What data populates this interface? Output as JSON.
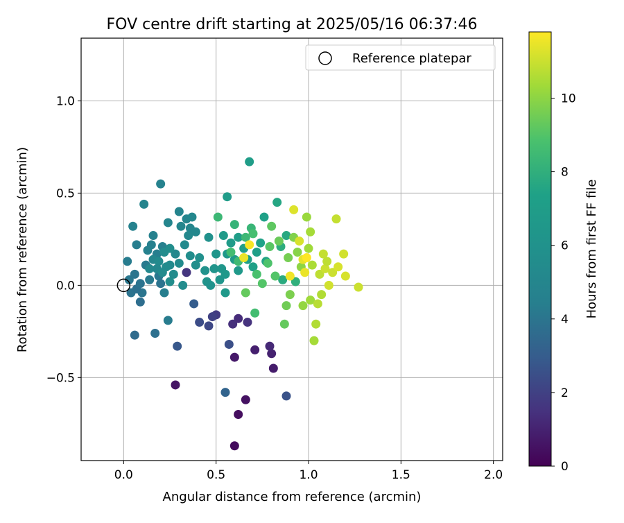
{
  "chart_data": {
    "type": "scatter",
    "title": "FOV centre drift starting at 2025/05/16 06:37:46",
    "xlabel": "Angular distance from reference (arcmin)",
    "ylabel": "Rotation from reference (arcmin)",
    "xlim": [
      -0.23,
      2.05
    ],
    "ylim": [
      -0.95,
      1.34
    ],
    "xticks": [
      0.0,
      0.5,
      1.0,
      1.5,
      2.0
    ],
    "xtick_labels": [
      "0.0",
      "0.5",
      "1.0",
      "1.5",
      "2.0"
    ],
    "yticks": [
      -0.5,
      0.0,
      0.5,
      1.0
    ],
    "ytick_labels": [
      "−0.5",
      "0.0",
      "0.5",
      "1.0"
    ],
    "grid": true,
    "legend": {
      "position": "upper right",
      "label": "Reference platepar"
    },
    "reference_point": {
      "x": 0.0,
      "y": 0.0
    },
    "colorbar": {
      "label": "Hours from first FF file",
      "min": 0,
      "max": 11.8,
      "ticks": [
        0,
        2,
        4,
        6,
        8,
        10
      ],
      "tick_labels": [
        "0",
        "2",
        "4",
        "6",
        "8",
        "10"
      ],
      "colormap": "viridis"
    },
    "points": [
      {
        "x": 0.6,
        "y": -0.87,
        "h": 0.3
      },
      {
        "x": 0.62,
        "y": -0.7,
        "h": 0.4
      },
      {
        "x": 0.66,
        "y": -0.62,
        "h": 0.5
      },
      {
        "x": 0.28,
        "y": -0.54,
        "h": 0.6
      },
      {
        "x": 0.6,
        "y": -0.39,
        "h": 0.7
      },
      {
        "x": 0.81,
        "y": -0.45,
        "h": 0.8
      },
      {
        "x": 0.71,
        "y": -0.35,
        "h": 0.9
      },
      {
        "x": 0.8,
        "y": -0.37,
        "h": 1.0
      },
      {
        "x": 0.79,
        "y": -0.33,
        "h": 1.2
      },
      {
        "x": 0.62,
        "y": -0.18,
        "h": 1.3
      },
      {
        "x": 0.59,
        "y": -0.21,
        "h": 1.4
      },
      {
        "x": 0.67,
        "y": -0.2,
        "h": 1.5
      },
      {
        "x": 0.34,
        "y": 0.07,
        "h": 1.6
      },
      {
        "x": 0.5,
        "y": -0.16,
        "h": 1.8
      },
      {
        "x": 0.48,
        "y": -0.17,
        "h": 2.0
      },
      {
        "x": 0.46,
        "y": -0.22,
        "h": 2.2
      },
      {
        "x": 0.41,
        "y": -0.2,
        "h": 2.4
      },
      {
        "x": 0.57,
        "y": -0.32,
        "h": 2.5
      },
      {
        "x": 0.88,
        "y": -0.6,
        "h": 2.6
      },
      {
        "x": 0.29,
        "y": -0.33,
        "h": 2.8
      },
      {
        "x": 0.38,
        "y": -0.1,
        "h": 3.0
      },
      {
        "x": 0.55,
        "y": -0.58,
        "h": 3.3
      },
      {
        "x": 0.06,
        "y": -0.27,
        "h": 3.6
      },
      {
        "x": 0.17,
        "y": -0.26,
        "h": 3.8
      },
      {
        "x": 0.09,
        "y": -0.09,
        "h": 3.7
      },
      {
        "x": 0.04,
        "y": -0.04,
        "h": 3.9
      },
      {
        "x": 0.1,
        "y": -0.04,
        "h": 4.0
      },
      {
        "x": 0.07,
        "y": -0.02,
        "h": 3.8
      },
      {
        "x": 0.03,
        "y": 0.03,
        "h": 4.1
      },
      {
        "x": 0.06,
        "y": 0.06,
        "h": 4.0
      },
      {
        "x": 0.09,
        "y": 0.01,
        "h": 3.9
      },
      {
        "x": 0.14,
        "y": 0.03,
        "h": 4.2
      },
      {
        "x": 0.19,
        "y": 0.05,
        "h": 4.1
      },
      {
        "x": 0.2,
        "y": 0.01,
        "h": 3.9
      },
      {
        "x": 0.24,
        "y": -0.19,
        "h": 4.3
      },
      {
        "x": 0.22,
        "y": -0.04,
        "h": 4.4
      },
      {
        "x": 0.02,
        "y": 0.13,
        "h": 4.3
      },
      {
        "x": 0.12,
        "y": 0.11,
        "h": 4.2
      },
      {
        "x": 0.07,
        "y": 0.22,
        "h": 4.4
      },
      {
        "x": 0.15,
        "y": 0.22,
        "h": 4.5
      },
      {
        "x": 0.13,
        "y": 0.19,
        "h": 4.6
      },
      {
        "x": 0.18,
        "y": 0.17,
        "h": 4.4
      },
      {
        "x": 0.21,
        "y": 0.21,
        "h": 4.5
      },
      {
        "x": 0.16,
        "y": 0.27,
        "h": 4.6
      },
      {
        "x": 0.2,
        "y": 0.55,
        "h": 4.7
      },
      {
        "x": 0.11,
        "y": 0.44,
        "h": 4.8
      },
      {
        "x": 0.05,
        "y": 0.32,
        "h": 4.7
      },
      {
        "x": 0.24,
        "y": 0.34,
        "h": 4.9
      },
      {
        "x": 0.3,
        "y": 0.4,
        "h": 4.8
      },
      {
        "x": 0.31,
        "y": 0.32,
        "h": 5.0
      },
      {
        "x": 0.34,
        "y": 0.36,
        "h": 4.9
      },
      {
        "x": 0.37,
        "y": 0.37,
        "h": 5.1
      },
      {
        "x": 0.36,
        "y": 0.31,
        "h": 5.0
      },
      {
        "x": 0.35,
        "y": 0.27,
        "h": 5.2
      },
      {
        "x": 0.39,
        "y": 0.29,
        "h": 5.1
      },
      {
        "x": 0.33,
        "y": 0.22,
        "h": 5.3
      },
      {
        "x": 0.28,
        "y": 0.17,
        "h": 5.2
      },
      {
        "x": 0.3,
        "y": 0.12,
        "h": 5.4
      },
      {
        "x": 0.25,
        "y": 0.11,
        "h": 5.3
      },
      {
        "x": 0.27,
        "y": 0.06,
        "h": 5.5
      },
      {
        "x": 0.23,
        "y": 0.1,
        "h": 5.4
      },
      {
        "x": 0.14,
        "y": 0.09,
        "h": 5.2
      },
      {
        "x": 0.16,
        "y": 0.14,
        "h": 5.0
      },
      {
        "x": 0.19,
        "y": 0.13,
        "h": 5.3
      },
      {
        "x": 0.22,
        "y": 0.18,
        "h": 5.5
      },
      {
        "x": 0.25,
        "y": 0.2,
        "h": 5.6
      },
      {
        "x": 0.18,
        "y": 0.09,
        "h": 5.1
      },
      {
        "x": 0.21,
        "y": 0.07,
        "h": 5.4
      },
      {
        "x": 0.25,
        "y": 0.02,
        "h": 5.6
      },
      {
        "x": 0.32,
        "y": 0.0,
        "h": 5.5
      },
      {
        "x": 0.39,
        "y": 0.11,
        "h": 5.7
      },
      {
        "x": 0.41,
        "y": 0.15,
        "h": 5.8
      },
      {
        "x": 0.36,
        "y": 0.16,
        "h": 5.6
      },
      {
        "x": 0.46,
        "y": 0.26,
        "h": 5.9
      },
      {
        "x": 0.44,
        "y": 0.08,
        "h": 6.0
      },
      {
        "x": 0.45,
        "y": 0.02,
        "h": 6.1
      },
      {
        "x": 0.47,
        "y": 0.0,
        "h": 6.0
      },
      {
        "x": 0.49,
        "y": 0.09,
        "h": 6.2
      },
      {
        "x": 0.5,
        "y": 0.17,
        "h": 6.3
      },
      {
        "x": 0.53,
        "y": 0.09,
        "h": 6.4
      },
      {
        "x": 0.55,
        "y": 0.06,
        "h": 6.5
      },
      {
        "x": 0.52,
        "y": 0.03,
        "h": 6.3
      },
      {
        "x": 0.55,
        "y": -0.04,
        "h": 6.6
      },
      {
        "x": 0.56,
        "y": 0.17,
        "h": 6.5
      },
      {
        "x": 0.6,
        "y": 0.14,
        "h": 6.7
      },
      {
        "x": 0.62,
        "y": 0.08,
        "h": 6.6
      },
      {
        "x": 0.58,
        "y": 0.23,
        "h": 6.8
      },
      {
        "x": 0.54,
        "y": 0.27,
        "h": 6.7
      },
      {
        "x": 0.56,
        "y": 0.48,
        "h": 6.9
      },
      {
        "x": 0.68,
        "y": 0.67,
        "h": 7.0
      },
      {
        "x": 0.62,
        "y": 0.26,
        "h": 7.0
      },
      {
        "x": 0.65,
        "y": 0.2,
        "h": 7.1
      },
      {
        "x": 0.67,
        "y": 0.14,
        "h": 7.2
      },
      {
        "x": 0.7,
        "y": 0.1,
        "h": 7.3
      },
      {
        "x": 0.72,
        "y": 0.18,
        "h": 7.2
      },
      {
        "x": 0.74,
        "y": 0.23,
        "h": 7.4
      },
      {
        "x": 0.76,
        "y": 0.37,
        "h": 7.3
      },
      {
        "x": 0.77,
        "y": 0.13,
        "h": 7.5
      },
      {
        "x": 0.83,
        "y": 0.45,
        "h": 7.6
      },
      {
        "x": 0.86,
        "y": 0.03,
        "h": 7.8
      },
      {
        "x": 0.85,
        "y": 0.21,
        "h": 7.9
      },
      {
        "x": 0.88,
        "y": 0.27,
        "h": 7.7
      },
      {
        "x": 0.93,
        "y": 0.02,
        "h": 8.0
      },
      {
        "x": 0.51,
        "y": 0.37,
        "h": 8.4
      },
      {
        "x": 0.6,
        "y": 0.33,
        "h": 8.2
      },
      {
        "x": 0.58,
        "y": 0.18,
        "h": 8.6
      },
      {
        "x": 0.62,
        "y": 0.13,
        "h": 8.5
      },
      {
        "x": 0.66,
        "y": 0.26,
        "h": 8.4
      },
      {
        "x": 0.69,
        "y": 0.31,
        "h": 8.3
      },
      {
        "x": 0.7,
        "y": 0.28,
        "h": 8.7
      },
      {
        "x": 0.72,
        "y": 0.06,
        "h": 8.8
      },
      {
        "x": 0.71,
        "y": -0.15,
        "h": 8.6
      },
      {
        "x": 0.75,
        "y": 0.01,
        "h": 9.0
      },
      {
        "x": 0.78,
        "y": 0.12,
        "h": 8.9
      },
      {
        "x": 0.79,
        "y": 0.21,
        "h": 9.1
      },
      {
        "x": 0.8,
        "y": 0.32,
        "h": 9.2
      },
      {
        "x": 0.82,
        "y": 0.05,
        "h": 9.0
      },
      {
        "x": 0.66,
        "y": -0.04,
        "h": 9.3
      },
      {
        "x": 0.84,
        "y": 0.24,
        "h": 9.4
      },
      {
        "x": 0.87,
        "y": -0.21,
        "h": 9.3
      },
      {
        "x": 0.88,
        "y": -0.11,
        "h": 9.5
      },
      {
        "x": 0.89,
        "y": 0.15,
        "h": 9.6
      },
      {
        "x": 0.9,
        "y": -0.05,
        "h": 9.7
      },
      {
        "x": 0.92,
        "y": 0.26,
        "h": 9.8
      },
      {
        "x": 0.94,
        "y": 0.18,
        "h": 9.9
      },
      {
        "x": 0.96,
        "y": 0.1,
        "h": 10.0
      },
      {
        "x": 0.97,
        "y": -0.11,
        "h": 10.1
      },
      {
        "x": 0.99,
        "y": 0.37,
        "h": 10.2
      },
      {
        "x": 1.0,
        "y": 0.2,
        "h": 10.3
      },
      {
        "x": 1.01,
        "y": 0.29,
        "h": 10.4
      },
      {
        "x": 1.01,
        "y": -0.08,
        "h": 10.3
      },
      {
        "x": 1.02,
        "y": 0.11,
        "h": 10.5
      },
      {
        "x": 1.03,
        "y": -0.3,
        "h": 10.4
      },
      {
        "x": 1.04,
        "y": -0.21,
        "h": 10.6
      },
      {
        "x": 1.05,
        "y": -0.1,
        "h": 10.7
      },
      {
        "x": 1.06,
        "y": 0.06,
        "h": 10.8
      },
      {
        "x": 1.07,
        "y": -0.05,
        "h": 10.6
      },
      {
        "x": 1.08,
        "y": 0.17,
        "h": 10.9
      },
      {
        "x": 1.09,
        "y": 0.09,
        "h": 11.0
      },
      {
        "x": 1.1,
        "y": 0.13,
        "h": 10.8
      },
      {
        "x": 1.11,
        "y": 0.0,
        "h": 11.1
      },
      {
        "x": 1.13,
        "y": 0.07,
        "h": 11.0
      },
      {
        "x": 1.15,
        "y": 0.36,
        "h": 10.9
      },
      {
        "x": 1.16,
        "y": 0.1,
        "h": 11.2
      },
      {
        "x": 1.19,
        "y": 0.17,
        "h": 11.1
      },
      {
        "x": 1.2,
        "y": 0.05,
        "h": 11.2
      },
      {
        "x": 1.27,
        "y": -0.01,
        "h": 11.0
      },
      {
        "x": 0.92,
        "y": 0.41,
        "h": 11.3
      },
      {
        "x": 0.95,
        "y": 0.24,
        "h": 11.2
      },
      {
        "x": 0.97,
        "y": 0.14,
        "h": 11.4
      },
      {
        "x": 0.98,
        "y": 0.07,
        "h": 11.5
      },
      {
        "x": 0.9,
        "y": 0.05,
        "h": 11.6
      },
      {
        "x": 0.68,
        "y": 0.22,
        "h": 11.7
      },
      {
        "x": 0.65,
        "y": 0.15,
        "h": 11.5
      },
      {
        "x": 0.99,
        "y": 0.15,
        "h": 11.8
      }
    ]
  }
}
